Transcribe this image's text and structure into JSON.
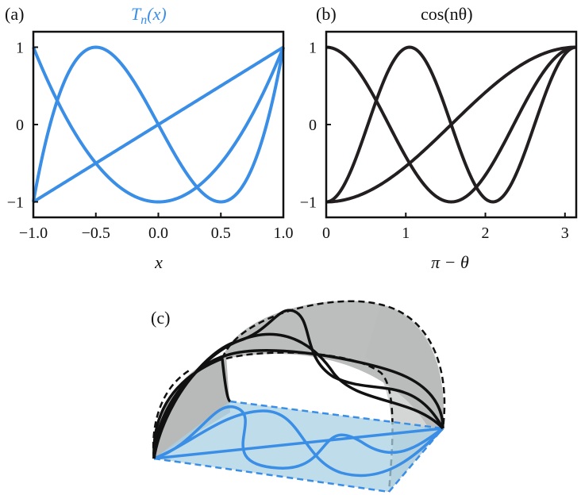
{
  "colors": {
    "blue": "#3a8ee6",
    "black": "#231f20",
    "surface_fill": "#b0b3b1",
    "plane_fill": "#a9d0e3"
  },
  "chart_data": [
    {
      "panel": "(a)",
      "type": "line",
      "title_main": "T",
      "title_sub": "n",
      "title_tail": "(x)",
      "xlabel": "x",
      "ylabel": "",
      "xlim": [
        -1.0,
        1.0
      ],
      "ylim": [
        -1.2,
        1.2
      ],
      "xticks": [
        "−1.0",
        "−0.5",
        "0.0",
        "0.5",
        "1.0"
      ],
      "yticks": [
        "1",
        "0",
        "−1"
      ],
      "grid": false,
      "series": [
        {
          "n": 1,
          "x": [
            -1.0,
            -0.5,
            0.0,
            0.5,
            1.0
          ],
          "y": [
            -1.0,
            -0.5,
            0.0,
            0.5,
            1.0
          ]
        },
        {
          "n": 2,
          "x": [
            -1.0,
            -0.5,
            0.0,
            0.5,
            1.0
          ],
          "y": [
            1.0,
            -0.5,
            -1.0,
            -0.5,
            1.0
          ]
        },
        {
          "n": 3,
          "x": [
            -1.0,
            -0.5,
            0.0,
            0.5,
            1.0
          ],
          "y": [
            -1.0,
            1.0,
            0.0,
            -1.0,
            1.0
          ]
        }
      ]
    },
    {
      "panel": "(b)",
      "type": "line",
      "title": "cos(nθ)",
      "xlabel": "π − θ",
      "ylabel": "",
      "xlim": [
        0,
        3.1416
      ],
      "ylim": [
        -1.2,
        1.2
      ],
      "xticks": [
        "0",
        "1",
        "2",
        "3"
      ],
      "yticks": [
        "1",
        "0",
        "−1"
      ],
      "grid": false,
      "series": [
        {
          "n": 1,
          "x": [
            0,
            1.0472,
            1.5708,
            2.0944,
            3.1416
          ],
          "y": [
            -1.0,
            -0.5,
            0.0,
            0.5,
            1.0
          ]
        },
        {
          "n": 2,
          "x": [
            0,
            1.0472,
            1.5708,
            2.0944,
            3.1416
          ],
          "y": [
            1.0,
            -0.5,
            -1.0,
            -0.5,
            1.0
          ]
        },
        {
          "n": 3,
          "x": [
            0,
            1.0472,
            1.5708,
            2.0944,
            3.1416
          ],
          "y": [
            -1.0,
            1.0,
            0.0,
            -1.0,
            1.0
          ]
        }
      ]
    },
    {
      "panel": "(c)",
      "type": "3d-illustration",
      "orders": [
        1,
        2,
        3
      ]
    }
  ]
}
